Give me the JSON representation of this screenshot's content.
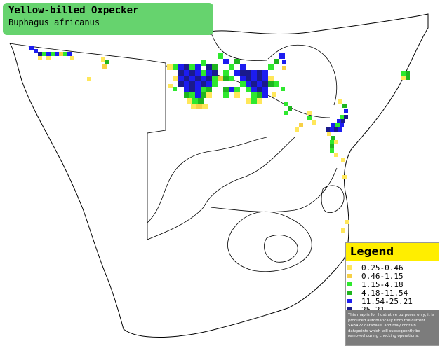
{
  "map": {
    "title": "Yellow-billed Oxpecker",
    "subtitle": "Buphagus africanus"
  },
  "legend": {
    "heading": "Legend",
    "items": [
      {
        "label": "0.25-0.46",
        "color": "#ffe75a"
      },
      {
        "label": "0.46-1.15",
        "color": "#f7d046"
      },
      {
        "label": "1.15-4.18",
        "color": "#2ee82e"
      },
      {
        "label": "4.18-11.54",
        "color": "#1fb51f"
      },
      {
        "label": "11.54-25.21",
        "color": "#1c1cf0"
      },
      {
        "label": "25.21+",
        "color": "#1a1a8c"
      }
    ],
    "note": "This map is for illustrative purposes only; it is produced automatically from the current SABAP2 database, and may contain datapoints which will subsequently be removed during checking operations."
  }
}
